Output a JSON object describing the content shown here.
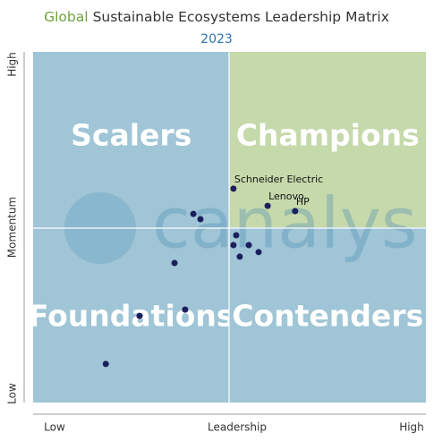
{
  "chart_data": {
    "type": "scatter",
    "title_parts": [
      {
        "text": "Global",
        "color": "#70a040"
      },
      {
        "text": "Sustainable Ecosystems Leadership Matrix",
        "color": "#333333"
      }
    ],
    "subtitle": "2023",
    "watermark": "canalys",
    "x_label": "Leadership",
    "y_label": "Momentum",
    "xlim": [
      0,
      100
    ],
    "ylim": [
      0,
      100
    ],
    "xticks": [
      {
        "value": 0,
        "label": "Low"
      },
      {
        "value": 100,
        "label": "High"
      }
    ],
    "yticks": [
      {
        "value": 0,
        "label": "Low"
      },
      {
        "value": 100,
        "label": "High"
      }
    ],
    "quadrants": [
      {
        "label": "Scalers",
        "color": "#9fc5d6"
      },
      {
        "label": "Champions",
        "color": "#c6d9ab"
      },
      {
        "label": "Foundations",
        "color": "#9fc5d6"
      },
      {
        "label": "Contenders",
        "color": "#9fc5d6"
      }
    ],
    "series": [
      {
        "color": "#1b1f5c",
        "x": [
          51.0,
          59.7,
          66.7,
          40.8,
          42.6,
          51.7,
          51.0,
          54.9,
          57.4,
          52.6,
          36.0,
          38.7,
          27.1,
          18.5
        ],
        "values": [
          61.0,
          56.1,
          54.6,
          53.8,
          52.3,
          47.7,
          44.9,
          44.9,
          42.9,
          41.6,
          39.8,
          26.5,
          24.7,
          11.0
        ],
        "point_labels": [
          "Schneider Electric",
          "Lenovo",
          "HP",
          null,
          null,
          null,
          null,
          null,
          null,
          null,
          null,
          null,
          null,
          null
        ]
      }
    ]
  }
}
